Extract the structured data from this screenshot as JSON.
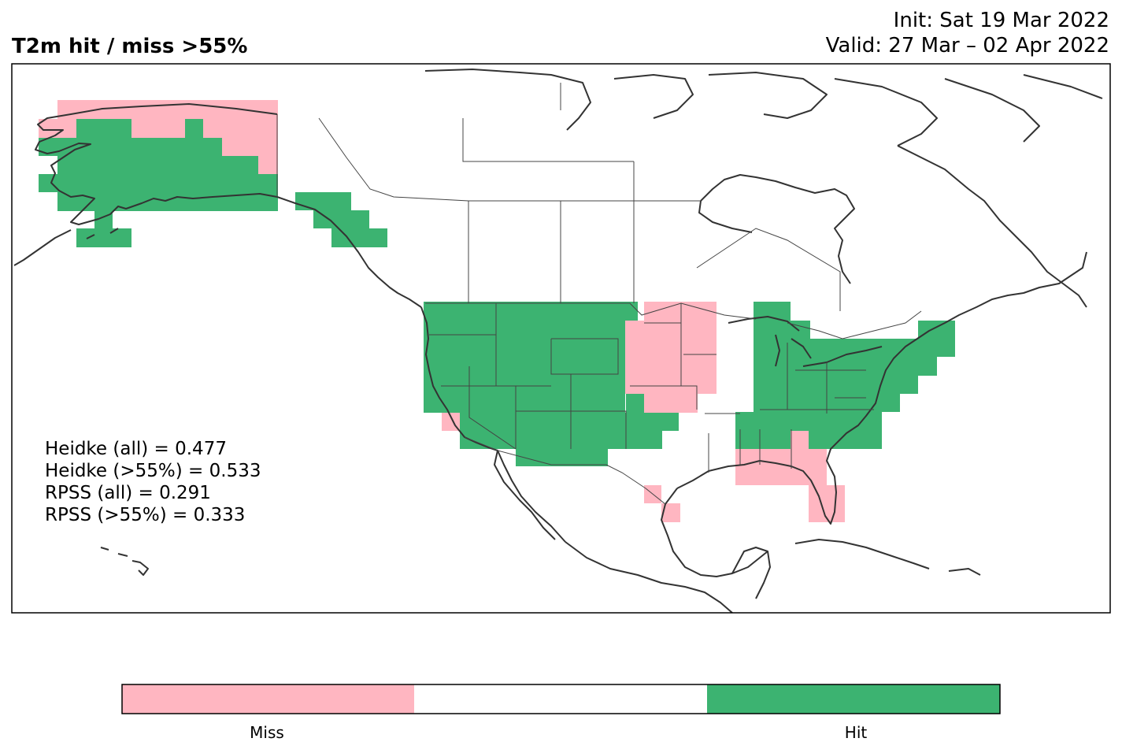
{
  "title": "T2m hit / miss  >55%",
  "init": "Init: Sat 19 Mar 2022",
  "valid": "Valid: 27 Mar – 02 Apr 2022",
  "stats": [
    "Heidke (all) = 0.477",
    "Heidke (>55%) = 0.533",
    "RPSS (all) = 0.291",
    "RPSS (>55%) = 0.333"
  ],
  "colors": {
    "miss": "#ffb6c1",
    "hit": "#3cb371",
    "neutral": "#ffffff",
    "coast": "#333333",
    "border": "#444444"
  },
  "colorbar": {
    "labels": [
      "Miss",
      "Hit"
    ]
  }
}
